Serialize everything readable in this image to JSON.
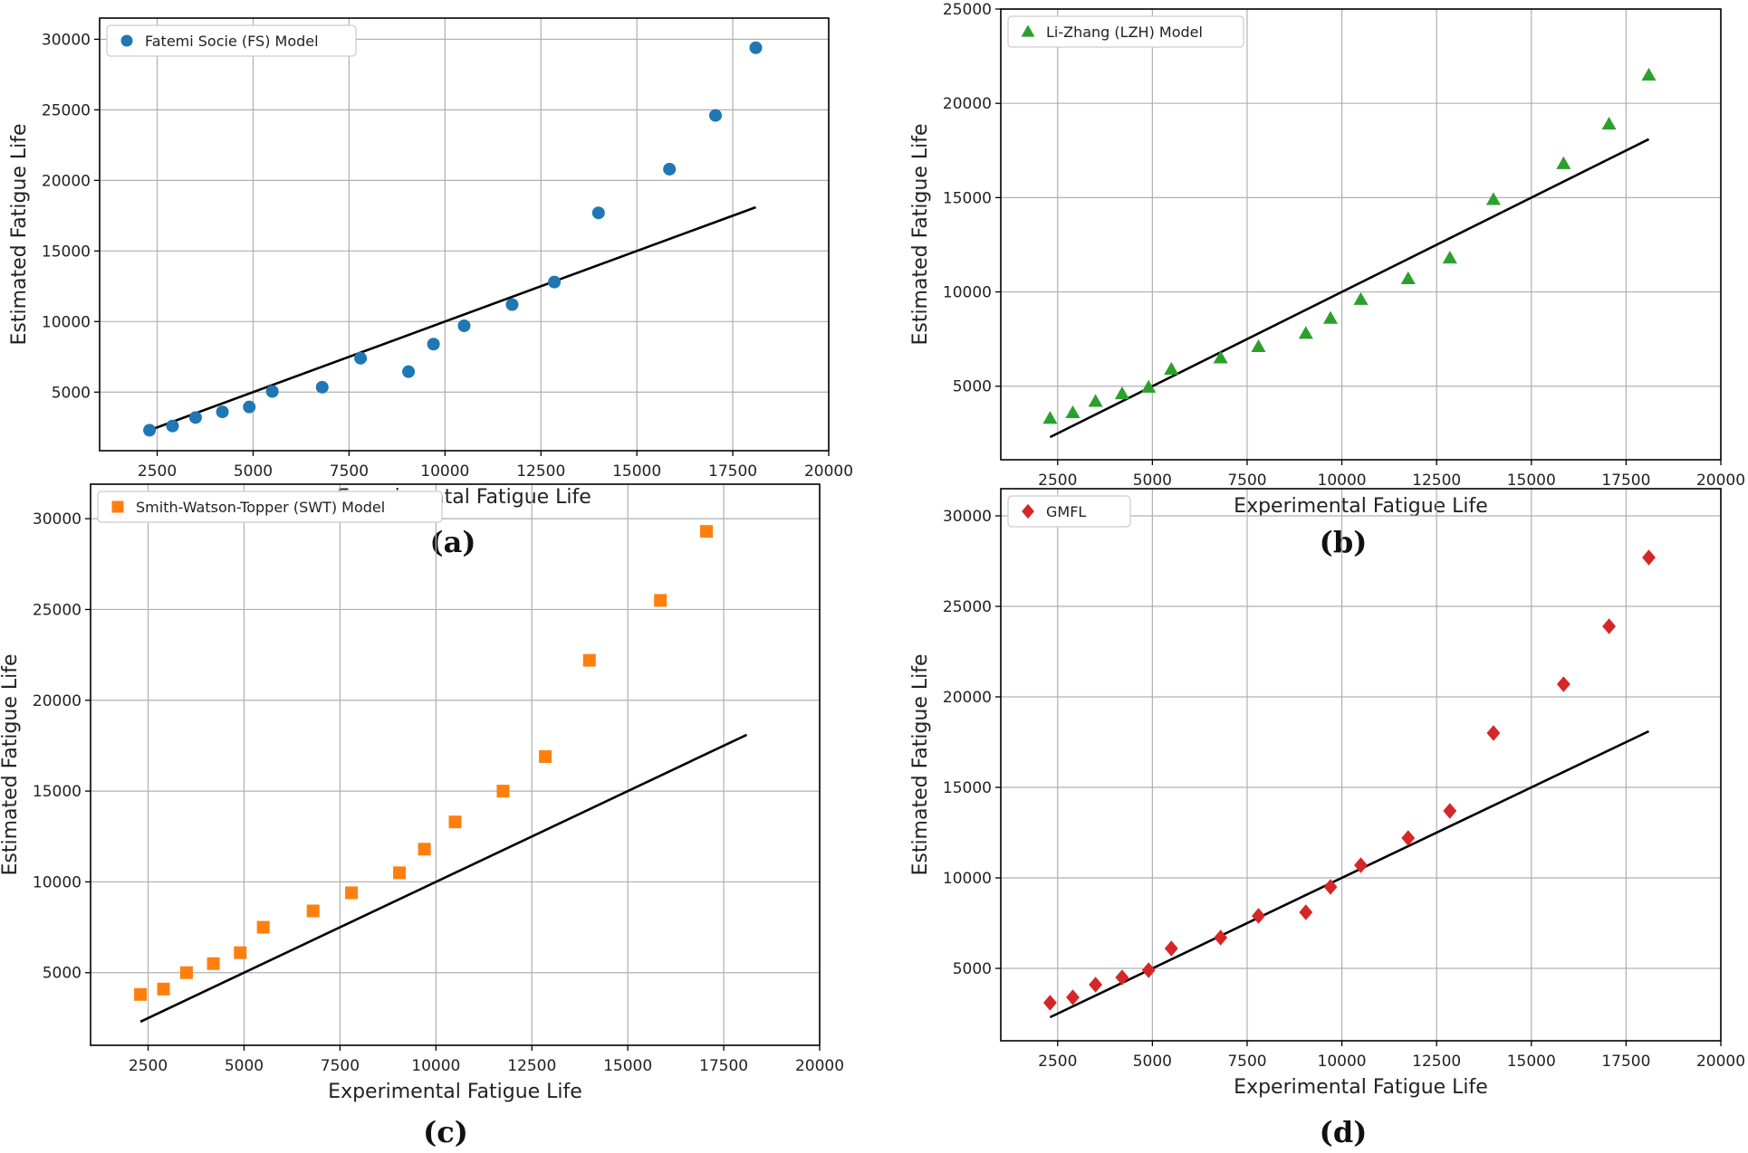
{
  "figure": {
    "reference_line": {
      "x": [
        2300,
        18100
      ],
      "y": [
        2300,
        18100
      ],
      "color": "#000000"
    },
    "panels_note": "Four scatter plots comparing estimated vs experimental fatigue life"
  },
  "chart_data": [
    {
      "type": "scatter",
      "panel_label": "(a)",
      "legend": "Fatemi Socie (FS) Model",
      "legend_position": "top-left",
      "marker": "circle",
      "color": "#1f77b4",
      "xlabel": "Experimental Fatigue Life",
      "ylabel": "Estimated Fatigue Life",
      "xlim": [
        1000,
        20000
      ],
      "ylim": [
        850,
        31500
      ],
      "xticks": [
        2500,
        5000,
        7500,
        10000,
        12500,
        15000,
        17500,
        20000
      ],
      "yticks": [
        5000,
        10000,
        15000,
        20000,
        25000,
        30000
      ],
      "grid": true,
      "x": [
        2300,
        2900,
        3500,
        4200,
        4900,
        5500,
        6800,
        7800,
        9050,
        9700,
        10500,
        11750,
        12850,
        14000,
        15850,
        17050,
        18100
      ],
      "y": [
        2300,
        2600,
        3200,
        3600,
        3950,
        5050,
        5350,
        7400,
        6450,
        8400,
        9700,
        11200,
        12800,
        17700,
        20800,
        24600,
        29400
      ]
    },
    {
      "type": "scatter",
      "panel_label": "(b)",
      "legend": "Li-Zhang (LZH) Model",
      "legend_position": "top-left",
      "marker": "triangle",
      "color": "#2ca02c",
      "xlabel": "Experimental Fatigue Life",
      "ylabel": "Estimated Fatigue Life",
      "xlim": [
        1000,
        20000
      ],
      "ylim": [
        1100,
        25000
      ],
      "xticks": [
        2500,
        5000,
        7500,
        10000,
        12500,
        15000,
        17500,
        20000
      ],
      "yticks": [
        5000,
        10000,
        15000,
        20000,
        25000
      ],
      "grid": true,
      "x": [
        2300,
        2900,
        3500,
        4200,
        4900,
        5500,
        6800,
        7800,
        9050,
        9700,
        10500,
        11750,
        12850,
        14000,
        15850,
        17050,
        18100
      ],
      "y": [
        3300,
        3600,
        4200,
        4600,
        4950,
        5900,
        6500,
        7100,
        7800,
        8600,
        9600,
        10700,
        11800,
        14900,
        16800,
        18900,
        21500
      ]
    },
    {
      "type": "scatter",
      "panel_label": "(c)",
      "legend": "Smith-Watson-Topper (SWT) Model",
      "legend_position": "top-left",
      "marker": "square",
      "color": "#ff7f0e",
      "xlabel": "Experimental Fatigue Life",
      "ylabel": "Estimated Fatigue Life",
      "xlim": [
        1000,
        20000
      ],
      "ylim": [
        1000,
        31900
      ],
      "xticks": [
        2500,
        5000,
        7500,
        10000,
        12500,
        15000,
        17500,
        20000
      ],
      "yticks": [
        5000,
        10000,
        15000,
        20000,
        25000,
        30000
      ],
      "grid": true,
      "x": [
        2300,
        2900,
        3500,
        4200,
        4900,
        5500,
        6800,
        7800,
        9050,
        9700,
        10500,
        11750,
        12850,
        14000,
        15850,
        17050
      ],
      "y": [
        3800,
        4100,
        5000,
        5500,
        6100,
        7500,
        8400,
        9400,
        10500,
        11800,
        13300,
        15000,
        16900,
        22200,
        25500,
        29300
      ]
    },
    {
      "type": "scatter",
      "panel_label": "(d)",
      "legend": "GMFL",
      "legend_position": "top-left",
      "marker": "diamond",
      "color": "#d62728",
      "xlabel": "Experimental Fatigue Life",
      "ylabel": "Estimated Fatigue Life",
      "xlim": [
        1000,
        20000
      ],
      "ylim": [
        1000,
        31500
      ],
      "xticks": [
        2500,
        5000,
        7500,
        10000,
        12500,
        15000,
        17500,
        20000
      ],
      "yticks": [
        5000,
        10000,
        15000,
        20000,
        25000,
        30000
      ],
      "grid": true,
      "x": [
        2300,
        2900,
        3500,
        4200,
        4900,
        5500,
        6800,
        7800,
        9050,
        9700,
        10500,
        11750,
        12850,
        14000,
        15850,
        17050,
        18100
      ],
      "y": [
        3100,
        3400,
        4100,
        4500,
        4900,
        6100,
        6700,
        7900,
        8100,
        9500,
        10700,
        12200,
        13700,
        18000,
        20700,
        23900,
        27700
      ]
    }
  ]
}
